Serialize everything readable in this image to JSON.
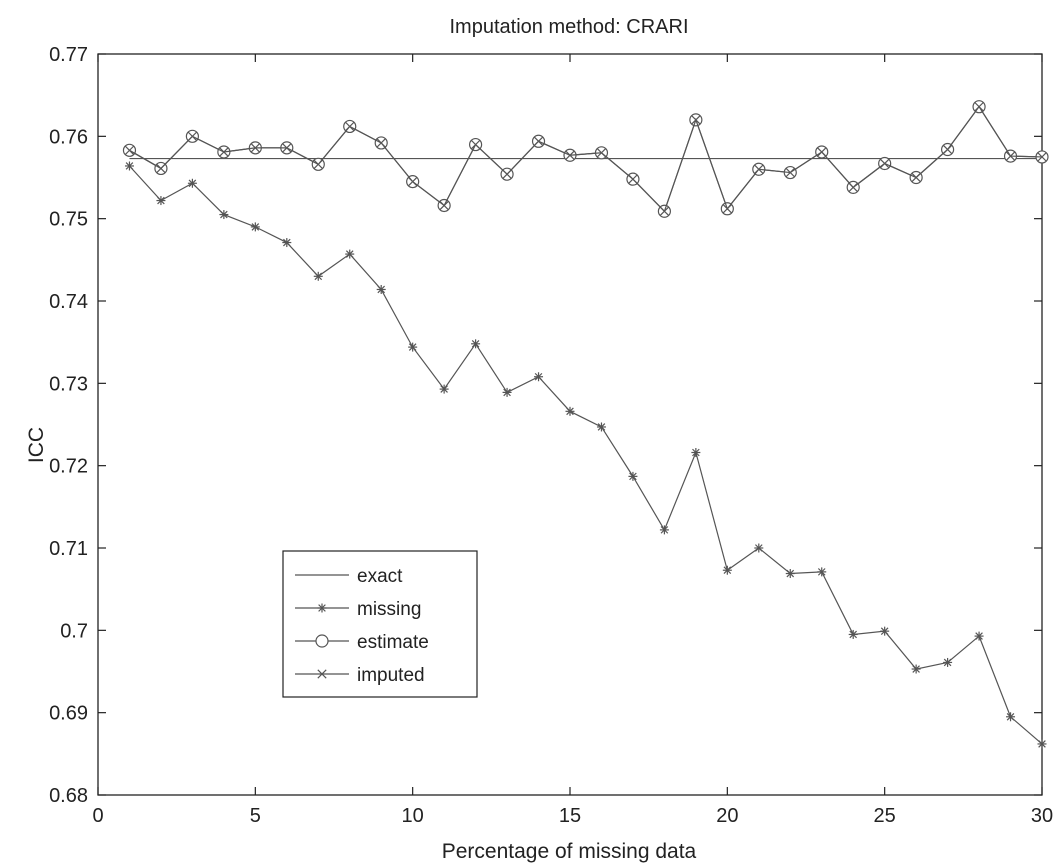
{
  "chart_data": {
    "type": "line",
    "title": "Imputation method: CRARI",
    "xlabel": "Percentage of missing data",
    "ylabel": "ICC",
    "xlim": [
      0,
      30
    ],
    "ylim": [
      0.68,
      0.77
    ],
    "xticks": [
      0,
      5,
      10,
      15,
      20,
      25,
      30
    ],
    "yticks": [
      0.68,
      0.69,
      0.7,
      0.71,
      0.72,
      0.73,
      0.74,
      0.75,
      0.76,
      0.77
    ],
    "ytick_labels": [
      "0.68",
      "0.69",
      "0.7",
      "0.71",
      "0.72",
      "0.73",
      "0.74",
      "0.75",
      "0.76",
      "0.77"
    ],
    "grid": false,
    "legend_position": "lower-left",
    "line_color": "#555555",
    "x": [
      1,
      2,
      3,
      4,
      5,
      6,
      7,
      8,
      9,
      10,
      11,
      12,
      13,
      14,
      15,
      16,
      17,
      18,
      19,
      20,
      21,
      22,
      23,
      24,
      25,
      26,
      27,
      28,
      29,
      30
    ],
    "series": [
      {
        "name": "exact",
        "marker": "none",
        "values": [
          0.7573,
          0.7573,
          0.7573,
          0.7573,
          0.7573,
          0.7573,
          0.7573,
          0.7573,
          0.7573,
          0.7573,
          0.7573,
          0.7573,
          0.7573,
          0.7573,
          0.7573,
          0.7573,
          0.7573,
          0.7573,
          0.7573,
          0.7573,
          0.7573,
          0.7573,
          0.7573,
          0.7573,
          0.7573,
          0.7573,
          0.7573,
          0.7573,
          0.7573,
          0.7573
        ]
      },
      {
        "name": "missing",
        "marker": "star",
        "values": [
          0.7564,
          0.7522,
          0.7543,
          0.7505,
          0.749,
          0.7471,
          0.743,
          0.7457,
          0.7414,
          0.7344,
          0.7293,
          0.7348,
          0.7289,
          0.7308,
          0.7266,
          0.7247,
          0.7187,
          0.7122,
          0.7216,
          0.7073,
          0.71,
          0.7069,
          0.7071,
          0.6995,
          0.6999,
          0.6953,
          0.6961,
          0.6993,
          0.6895,
          0.6862
        ]
      },
      {
        "name": "estimate",
        "marker": "circle",
        "values": [
          0.7583,
          0.7561,
          0.76,
          0.7581,
          0.7586,
          0.7586,
          0.7566,
          0.7612,
          0.7592,
          0.7545,
          0.7516,
          0.759,
          0.7554,
          0.7594,
          0.7577,
          0.758,
          0.7548,
          0.7509,
          0.762,
          0.7512,
          0.756,
          0.7556,
          0.7581,
          0.7538,
          0.7567,
          0.755,
          0.7584,
          0.7636,
          0.7576,
          0.7575
        ]
      },
      {
        "name": "imputed",
        "marker": "x",
        "values": [
          0.7583,
          0.7561,
          0.76,
          0.7581,
          0.7586,
          0.7586,
          0.7566,
          0.7612,
          0.7592,
          0.7545,
          0.7516,
          0.759,
          0.7554,
          0.7594,
          0.7577,
          0.758,
          0.7548,
          0.7509,
          0.762,
          0.7512,
          0.756,
          0.7556,
          0.7581,
          0.7538,
          0.7567,
          0.755,
          0.7584,
          0.7636,
          0.7576,
          0.7575
        ]
      }
    ]
  }
}
